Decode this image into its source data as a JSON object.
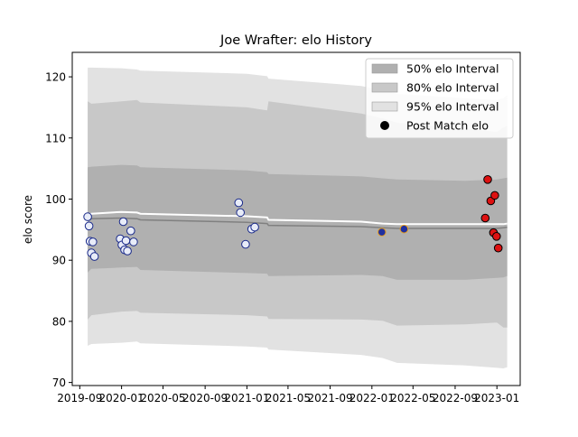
{
  "chart_data": {
    "type": "line",
    "title": "Joe Wrafter: elo History",
    "xlabel": "",
    "ylabel": "elo score",
    "ylim": [
      69.5,
      124
    ],
    "xlim": [
      "2019-08-10",
      "2023-03-10"
    ],
    "grid": false,
    "legend_position": "top-right",
    "x_ticks": [
      "2019-09",
      "2020-01",
      "2020-05",
      "2020-09",
      "2021-01",
      "2021-05",
      "2021-09",
      "2022-01",
      "2022-05",
      "2022-09",
      "2023-01"
    ],
    "y_ticks": [
      70,
      80,
      90,
      100,
      110,
      120
    ],
    "legend": [
      {
        "label": "50% elo Interval",
        "color": "#b0b0b0",
        "kind": "patch"
      },
      {
        "label": "80% elo Interval",
        "color": "#c8c8c8",
        "kind": "patch"
      },
      {
        "label": "95% elo Interval",
        "color": "#e2e2e2",
        "kind": "patch"
      },
      {
        "label": "Post Match elo",
        "color": "#000000",
        "kind": "marker"
      }
    ],
    "bands": [
      {
        "name": "95% elo Interval",
        "color": "#e2e2e2",
        "x": [
          "2019-09-24",
          "2019-10-05",
          "2020-01-01",
          "2020-02-15",
          "2020-02-25",
          "2021-01-01",
          "2021-03-01",
          "2021-03-05",
          "2021-12-01",
          "2022-02-01",
          "2022-03-15",
          "2022-10-01",
          "2023-01-01",
          "2023-01-20",
          "2023-01-31"
        ],
        "upper": [
          121.5,
          121.5,
          121.4,
          121.2,
          121.0,
          120.5,
          120.1,
          119.7,
          118.5,
          117.8,
          117.2,
          116.5,
          116.2,
          116.5,
          117.0
        ],
        "lower": [
          76.0,
          76.3,
          76.5,
          76.7,
          76.4,
          75.9,
          75.7,
          75.4,
          74.5,
          74.0,
          73.2,
          72.8,
          72.4,
          72.3,
          72.5
        ]
      },
      {
        "name": "80% elo Interval",
        "color": "#c8c8c8",
        "x": [
          "2019-09-24",
          "2019-10-05",
          "2020-01-01",
          "2020-02-15",
          "2020-02-25",
          "2021-01-01",
          "2021-03-01",
          "2021-03-05",
          "2021-12-01",
          "2022-02-01",
          "2022-03-15",
          "2022-10-01",
          "2023-01-01",
          "2023-01-20",
          "2023-01-31"
        ],
        "upper": [
          116.0,
          115.6,
          116.0,
          116.2,
          115.8,
          115.0,
          114.5,
          116.0,
          114.0,
          113.2,
          112.5,
          111.5,
          111.0,
          111.7,
          112.0
        ],
        "lower": [
          80.3,
          81.0,
          81.6,
          81.7,
          81.4,
          81.0,
          80.8,
          80.4,
          80.3,
          80.1,
          79.3,
          79.5,
          79.8,
          79.0,
          79.0
        ]
      },
      {
        "name": "50% elo Interval",
        "color": "#b0b0b0",
        "x": [
          "2019-09-24",
          "2019-10-05",
          "2020-01-01",
          "2020-02-15",
          "2020-02-25",
          "2021-01-01",
          "2021-03-01",
          "2021-03-05",
          "2021-12-01",
          "2022-02-01",
          "2022-03-15",
          "2022-10-01",
          "2023-01-01",
          "2023-01-20",
          "2023-01-31"
        ],
        "upper": [
          105.2,
          105.3,
          105.6,
          105.5,
          105.2,
          104.7,
          104.4,
          104.1,
          103.7,
          103.4,
          103.2,
          103.0,
          103.2,
          103.4,
          103.5
        ],
        "lower": [
          88.0,
          88.6,
          88.8,
          88.9,
          88.4,
          87.9,
          87.8,
          87.4,
          87.6,
          87.4,
          86.8,
          86.8,
          87.1,
          87.2,
          87.4
        ]
      }
    ],
    "series": [
      {
        "name": "",
        "role": "mean-line",
        "color": "#808080",
        "x": [
          "2019-09-24",
          "2019-10-05",
          "2020-01-01",
          "2020-02-15",
          "2020-02-25",
          "2021-01-01",
          "2021-03-01",
          "2021-03-05",
          "2021-12-01",
          "2022-02-01",
          "2022-03-15",
          "2022-10-01",
          "2023-01-01",
          "2023-01-20",
          "2023-01-31"
        ],
        "values": [
          96.6,
          96.8,
          96.9,
          96.8,
          96.6,
          96.2,
          96.0,
          95.7,
          95.5,
          95.3,
          95.2,
          95.2,
          95.2,
          95.3,
          95.4
        ]
      },
      {
        "name": "",
        "role": "median-line",
        "color": "#ffffff",
        "x": [
          "2019-09-24",
          "2019-10-05",
          "2020-01-01",
          "2020-02-15",
          "2020-02-25",
          "2021-01-01",
          "2021-03-01",
          "2021-03-05",
          "2021-12-01",
          "2022-02-01",
          "2022-03-15",
          "2022-10-01",
          "2023-01-01",
          "2023-01-20",
          "2023-01-31"
        ],
        "values": [
          97.2,
          97.6,
          97.9,
          97.8,
          97.6,
          97.2,
          97.0,
          96.6,
          96.3,
          96.0,
          95.9,
          95.9,
          95.9,
          95.9,
          96.0
        ]
      }
    ],
    "points": [
      {
        "x": "2019-09-24",
        "y": 97.1,
        "fill": "#e8ecf8",
        "edge": "#1a2a8a"
      },
      {
        "x": "2019-09-28",
        "y": 95.6,
        "fill": "#e8ecf8",
        "edge": "#1a2a8a"
      },
      {
        "x": "2019-10-01",
        "y": 93.1,
        "fill": "#e8ecf8",
        "edge": "#1a2a8a"
      },
      {
        "x": "2019-10-05",
        "y": 91.2,
        "fill": "#e8ecf8",
        "edge": "#1a2a8a"
      },
      {
        "x": "2019-10-09",
        "y": 93.0,
        "fill": "#e8ecf8",
        "edge": "#1a2a8a"
      },
      {
        "x": "2019-10-14",
        "y": 90.6,
        "fill": "#e8ecf8",
        "edge": "#1a2a8a"
      },
      {
        "x": "2019-12-28",
        "y": 93.5,
        "fill": "#e8ecf8",
        "edge": "#1a2a8a"
      },
      {
        "x": "2020-01-02",
        "y": 92.5,
        "fill": "#e8ecf8",
        "edge": "#1a2a8a"
      },
      {
        "x": "2020-01-06",
        "y": 96.3,
        "fill": "#e8ecf8",
        "edge": "#1a2a8a"
      },
      {
        "x": "2020-01-10",
        "y": 91.7,
        "fill": "#e8ecf8",
        "edge": "#1a2a8a"
      },
      {
        "x": "2020-01-14",
        "y": 93.2,
        "fill": "#e8ecf8",
        "edge": "#1a2a8a"
      },
      {
        "x": "2020-01-18",
        "y": 91.5,
        "fill": "#e8ecf8",
        "edge": "#1a2a8a"
      },
      {
        "x": "2020-01-28",
        "y": 94.8,
        "fill": "#e8ecf8",
        "edge": "#1a2a8a"
      },
      {
        "x": "2020-02-05",
        "y": 93.0,
        "fill": "#e8ecf8",
        "edge": "#1a2a8a"
      },
      {
        "x": "2020-12-08",
        "y": 99.4,
        "fill": "#e8ecf8",
        "edge": "#1a2a8a"
      },
      {
        "x": "2020-12-13",
        "y": 97.8,
        "fill": "#e8ecf8",
        "edge": "#1a2a8a"
      },
      {
        "x": "2020-12-28",
        "y": 92.6,
        "fill": "#e8ecf8",
        "edge": "#1a2a8a"
      },
      {
        "x": "2021-01-15",
        "y": 95.1,
        "fill": "#e8ecf8",
        "edge": "#1a2a8a"
      },
      {
        "x": "2021-01-24",
        "y": 95.4,
        "fill": "#e8ecf8",
        "edge": "#1a2a8a"
      },
      {
        "x": "2022-01-30",
        "y": 94.6,
        "fill": "#2030a0",
        "edge": "#e8a020"
      },
      {
        "x": "2022-04-05",
        "y": 95.1,
        "fill": "#2030a0",
        "edge": "#e8a020"
      },
      {
        "x": "2022-11-28",
        "y": 96.9,
        "fill": "#dd1111",
        "edge": "#000000"
      },
      {
        "x": "2022-12-05",
        "y": 103.2,
        "fill": "#dd1111",
        "edge": "#000000"
      },
      {
        "x": "2022-12-14",
        "y": 99.7,
        "fill": "#dd1111",
        "edge": "#000000"
      },
      {
        "x": "2022-12-22",
        "y": 94.5,
        "fill": "#dd1111",
        "edge": "#000000"
      },
      {
        "x": "2022-12-26",
        "y": 100.6,
        "fill": "#dd1111",
        "edge": "#000000"
      },
      {
        "x": "2022-12-31",
        "y": 93.9,
        "fill": "#dd1111",
        "edge": "#000000"
      },
      {
        "x": "2023-01-05",
        "y": 92.0,
        "fill": "#dd1111",
        "edge": "#000000"
      }
    ]
  }
}
